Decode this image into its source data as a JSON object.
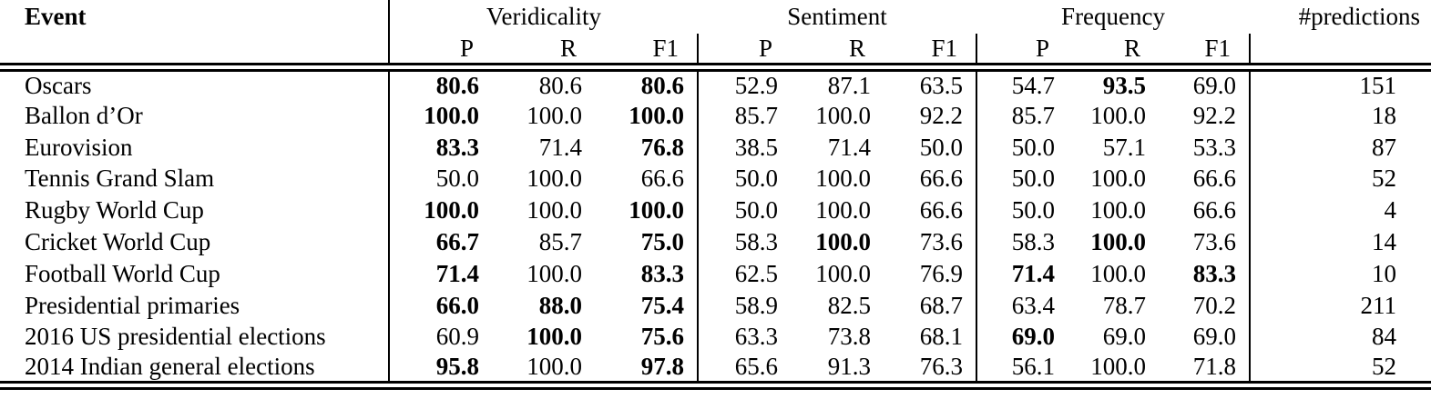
{
  "table": {
    "header": {
      "event_label": "Event",
      "groups": [
        {
          "label": "Veridicality"
        },
        {
          "label": "Sentiment"
        },
        {
          "label": "Frequency"
        }
      ],
      "subcols": [
        "P",
        "R",
        "F1"
      ],
      "predictions_label": "#predictions"
    },
    "rows": [
      {
        "event": "Oscars",
        "veridicality": [
          {
            "v": "80.6",
            "bold": true
          },
          {
            "v": "80.6",
            "bold": false
          },
          {
            "v": "80.6",
            "bold": true
          }
        ],
        "sentiment": [
          {
            "v": "52.9",
            "bold": false
          },
          {
            "v": "87.1",
            "bold": false
          },
          {
            "v": "63.5",
            "bold": false
          }
        ],
        "frequency": [
          {
            "v": "54.7",
            "bold": false
          },
          {
            "v": "93.5",
            "bold": true
          },
          {
            "v": "69.0",
            "bold": false
          }
        ],
        "predictions": "151"
      },
      {
        "event": "Ballon d’Or",
        "veridicality": [
          {
            "v": "100.0",
            "bold": true
          },
          {
            "v": "100.0",
            "bold": false
          },
          {
            "v": "100.0",
            "bold": true
          }
        ],
        "sentiment": [
          {
            "v": "85.7",
            "bold": false
          },
          {
            "v": "100.0",
            "bold": false
          },
          {
            "v": "92.2",
            "bold": false
          }
        ],
        "frequency": [
          {
            "v": "85.7",
            "bold": false
          },
          {
            "v": "100.0",
            "bold": false
          },
          {
            "v": "92.2",
            "bold": false
          }
        ],
        "predictions": "18"
      },
      {
        "event": "Eurovision",
        "veridicality": [
          {
            "v": "83.3",
            "bold": true
          },
          {
            "v": "71.4",
            "bold": false
          },
          {
            "v": "76.8",
            "bold": true
          }
        ],
        "sentiment": [
          {
            "v": "38.5",
            "bold": false
          },
          {
            "v": "71.4",
            "bold": false
          },
          {
            "v": "50.0",
            "bold": false
          }
        ],
        "frequency": [
          {
            "v": "50.0",
            "bold": false
          },
          {
            "v": "57.1",
            "bold": false
          },
          {
            "v": "53.3",
            "bold": false
          }
        ],
        "predictions": "87"
      },
      {
        "event": "Tennis Grand Slam",
        "veridicality": [
          {
            "v": "50.0",
            "bold": false
          },
          {
            "v": "100.0",
            "bold": false
          },
          {
            "v": "66.6",
            "bold": false
          }
        ],
        "sentiment": [
          {
            "v": "50.0",
            "bold": false
          },
          {
            "v": "100.0",
            "bold": false
          },
          {
            "v": "66.6",
            "bold": false
          }
        ],
        "frequency": [
          {
            "v": "50.0",
            "bold": false
          },
          {
            "v": "100.0",
            "bold": false
          },
          {
            "v": "66.6",
            "bold": false
          }
        ],
        "predictions": "52"
      },
      {
        "event": "Rugby World Cup",
        "veridicality": [
          {
            "v": "100.0",
            "bold": true
          },
          {
            "v": "100.0",
            "bold": false
          },
          {
            "v": "100.0",
            "bold": true
          }
        ],
        "sentiment": [
          {
            "v": "50.0",
            "bold": false
          },
          {
            "v": "100.0",
            "bold": false
          },
          {
            "v": "66.6",
            "bold": false
          }
        ],
        "frequency": [
          {
            "v": "50.0",
            "bold": false
          },
          {
            "v": "100.0",
            "bold": false
          },
          {
            "v": "66.6",
            "bold": false
          }
        ],
        "predictions": "4"
      },
      {
        "event": "Cricket World Cup",
        "veridicality": [
          {
            "v": "66.7",
            "bold": true
          },
          {
            "v": "85.7",
            "bold": false
          },
          {
            "v": "75.0",
            "bold": true
          }
        ],
        "sentiment": [
          {
            "v": "58.3",
            "bold": false
          },
          {
            "v": "100.0",
            "bold": true
          },
          {
            "v": "73.6",
            "bold": false
          }
        ],
        "frequency": [
          {
            "v": "58.3",
            "bold": false
          },
          {
            "v": "100.0",
            "bold": true
          },
          {
            "v": "73.6",
            "bold": false
          }
        ],
        "predictions": "14"
      },
      {
        "event": "Football World Cup",
        "veridicality": [
          {
            "v": "71.4",
            "bold": true
          },
          {
            "v": "100.0",
            "bold": false
          },
          {
            "v": "83.3",
            "bold": true
          }
        ],
        "sentiment": [
          {
            "v": "62.5",
            "bold": false
          },
          {
            "v": "100.0",
            "bold": false
          },
          {
            "v": "76.9",
            "bold": false
          }
        ],
        "frequency": [
          {
            "v": "71.4",
            "bold": true
          },
          {
            "v": "100.0",
            "bold": false
          },
          {
            "v": "83.3",
            "bold": true
          }
        ],
        "predictions": "10"
      },
      {
        "event": "Presidential primaries",
        "veridicality": [
          {
            "v": "66.0",
            "bold": true
          },
          {
            "v": "88.0",
            "bold": true
          },
          {
            "v": "75.4",
            "bold": true
          }
        ],
        "sentiment": [
          {
            "v": "58.9",
            "bold": false
          },
          {
            "v": "82.5",
            "bold": false
          },
          {
            "v": "68.7",
            "bold": false
          }
        ],
        "frequency": [
          {
            "v": "63.4",
            "bold": false
          },
          {
            "v": "78.7",
            "bold": false
          },
          {
            "v": "70.2",
            "bold": false
          }
        ],
        "predictions": "211"
      },
      {
        "event": "2016 US presidential elections",
        "veridicality": [
          {
            "v": "60.9",
            "bold": false
          },
          {
            "v": "100.0",
            "bold": true
          },
          {
            "v": "75.6",
            "bold": true
          }
        ],
        "sentiment": [
          {
            "v": "63.3",
            "bold": false
          },
          {
            "v": "73.8",
            "bold": false
          },
          {
            "v": "68.1",
            "bold": false
          }
        ],
        "frequency": [
          {
            "v": "69.0",
            "bold": true
          },
          {
            "v": "69.0",
            "bold": false
          },
          {
            "v": "69.0",
            "bold": false
          }
        ],
        "predictions": "84"
      },
      {
        "event": "2014 Indian general elections",
        "veridicality": [
          {
            "v": "95.8",
            "bold": true
          },
          {
            "v": "100.0",
            "bold": false
          },
          {
            "v": "97.8",
            "bold": true
          }
        ],
        "sentiment": [
          {
            "v": "65.6",
            "bold": false
          },
          {
            "v": "91.3",
            "bold": false
          },
          {
            "v": "76.3",
            "bold": false
          }
        ],
        "frequency": [
          {
            "v": "56.1",
            "bold": false
          },
          {
            "v": "100.0",
            "bold": false
          },
          {
            "v": "71.8",
            "bold": false
          }
        ],
        "predictions": "52"
      }
    ]
  }
}
